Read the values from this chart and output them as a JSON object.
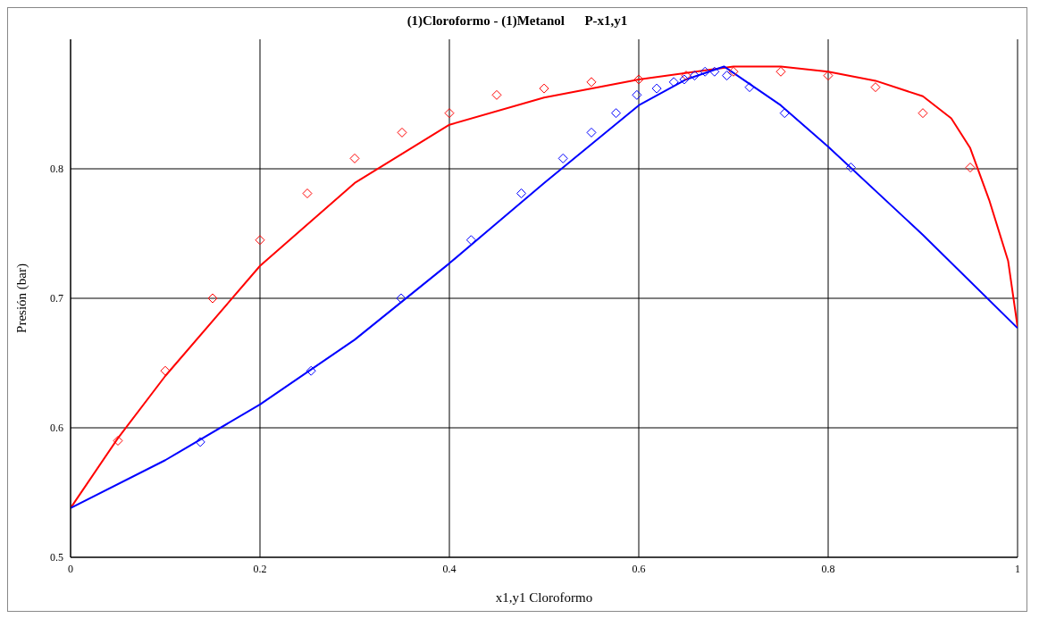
{
  "chart_data": {
    "type": "line",
    "title": "(1)Cloroformo - (1)Metanol      P-x1,y1",
    "xlabel": "x1,y1 Cloroformo",
    "ylabel": "Presión (bar)",
    "xlim": [
      0,
      1
    ],
    "ylim": [
      0.5,
      0.9
    ],
    "xticks": [
      0,
      0.2,
      0.4,
      0.6,
      0.8,
      1
    ],
    "yticks": [
      0.5,
      0.6,
      0.7,
      0.8
    ],
    "grid": true,
    "series": [
      {
        "color": "#ff0000",
        "marker": "none",
        "x": [
          0,
          0.05,
          0.1,
          0.2,
          0.3,
          0.4,
          0.5,
          0.6,
          0.7,
          0.75,
          0.8,
          0.85,
          0.9,
          0.93,
          0.95,
          0.97,
          0.99,
          1
        ],
        "values": [
          0.538,
          0.592,
          0.64,
          0.725,
          0.789,
          0.834,
          0.855,
          0.869,
          0.879,
          0.879,
          0.875,
          0.868,
          0.856,
          0.839,
          0.816,
          0.776,
          0.729,
          0.678
        ]
      },
      {
        "color": "#0000ff",
        "marker": "none",
        "x": [
          0,
          0.1,
          0.2,
          0.3,
          0.4,
          0.5,
          0.6,
          0.65,
          0.69,
          0.75,
          0.8,
          0.9,
          1
        ],
        "values": [
          0.538,
          0.575,
          0.618,
          0.668,
          0.727,
          0.789,
          0.849,
          0.869,
          0.879,
          0.849,
          0.817,
          0.749,
          0.677
        ]
      },
      {
        "type": "scatter",
        "color": "#ff0000",
        "marker": "diamond",
        "x": [
          0.05,
          0.1,
          0.15,
          0.2,
          0.25,
          0.3,
          0.35,
          0.4,
          0.45,
          0.5,
          0.55,
          0.6,
          0.65,
          0.7,
          0.75,
          0.8,
          0.85,
          0.9,
          0.95
        ],
        "values": [
          0.59,
          0.644,
          0.7,
          0.745,
          0.781,
          0.808,
          0.828,
          0.843,
          0.857,
          0.862,
          0.867,
          0.869,
          0.872,
          0.875,
          0.875,
          0.872,
          0.863,
          0.843,
          0.801
        ]
      },
      {
        "type": "scatter",
        "color": "#0000ff",
        "marker": "diamond",
        "x": [
          0.137,
          0.254,
          0.349,
          0.423,
          0.476,
          0.52,
          0.55,
          0.576,
          0.598,
          0.619,
          0.637,
          0.648,
          0.659,
          0.67,
          0.68,
          0.693,
          0.717,
          0.754,
          0.824
        ],
        "values": [
          0.589,
          0.644,
          0.7,
          0.745,
          0.781,
          0.808,
          0.828,
          0.843,
          0.857,
          0.862,
          0.867,
          0.869,
          0.872,
          0.875,
          0.875,
          0.872,
          0.863,
          0.843,
          0.801
        ]
      }
    ]
  }
}
